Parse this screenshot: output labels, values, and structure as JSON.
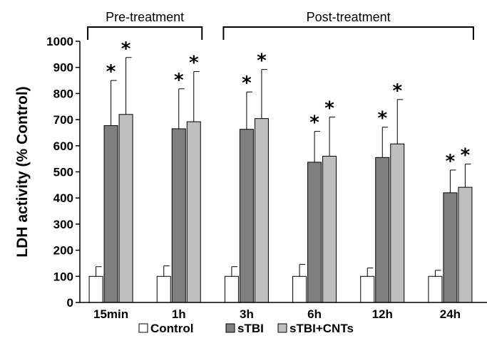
{
  "chart_data": {
    "type": "bar",
    "ylabel": "LDH activity (% Control)",
    "xlabel": "",
    "ylim": [
      0,
      1000
    ],
    "yticks": [
      0,
      100,
      200,
      300,
      400,
      500,
      600,
      700,
      800,
      900,
      1000
    ],
    "categories": [
      "15min",
      "1h",
      "3h",
      "6h",
      "12h",
      "24h"
    ],
    "series": [
      {
        "name": "Control",
        "color": "#ffffff",
        "values": [
          100,
          100,
          100,
          100,
          100,
          100
        ],
        "errors": [
          37,
          40,
          37,
          46,
          32,
          23
        ],
        "significant": [
          false,
          false,
          false,
          false,
          false,
          false
        ]
      },
      {
        "name": "sTBI",
        "color": "#7f7f7f",
        "values": [
          677,
          665,
          663,
          537,
          555,
          420
        ],
        "errors": [
          173,
          153,
          143,
          118,
          116,
          87
        ],
        "significant": [
          true,
          true,
          true,
          true,
          true,
          true
        ]
      },
      {
        "name": "sTBI+CNTs",
        "color": "#bfbfbf",
        "values": [
          720,
          692,
          704,
          560,
          607,
          441
        ],
        "errors": [
          218,
          192,
          188,
          150,
          170,
          89
        ],
        "significant": [
          true,
          true,
          true,
          true,
          true,
          true
        ]
      }
    ],
    "significance_marker": "*",
    "groups": [
      {
        "label": "Pre-treatment",
        "categories": [
          0,
          1
        ]
      },
      {
        "label": "Post-treatment",
        "categories": [
          2,
          3,
          4,
          5
        ]
      }
    ],
    "legend_position": "bottom",
    "grid": false
  }
}
